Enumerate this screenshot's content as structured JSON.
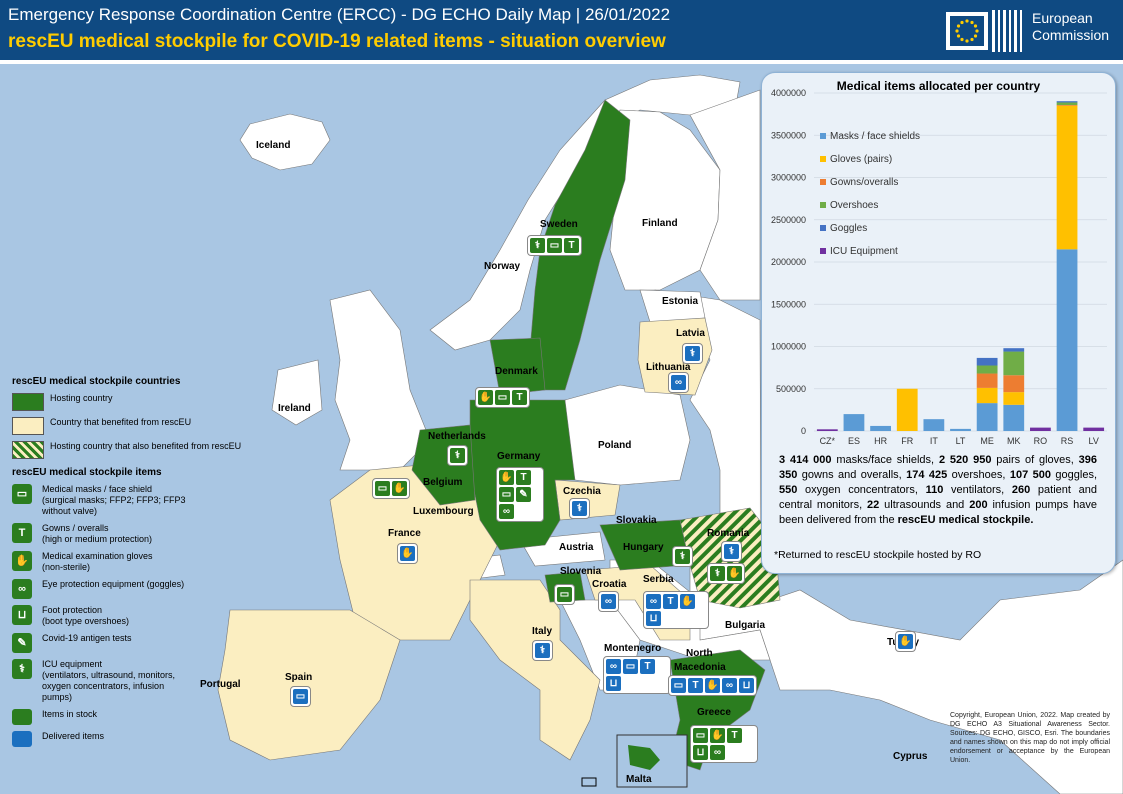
{
  "header": {
    "title": "Emergency Response Coordination Centre (ERCC) - DG ECHO Daily Map | 26/01/2022",
    "subtitle": "rescEU medical stockpile for COVID-19 related items - situation overview",
    "org_line1": "European",
    "org_line2": "Commission"
  },
  "colors": {
    "header_bg": "#0f4a82",
    "sea": "#a9c6e3",
    "hosting": "#2b7d1f",
    "benefited": "#fbeec1",
    "other_country": "#ffffff",
    "delivered_blue": "#1b6fbf",
    "series_masks": "#5b9bd5",
    "series_gloves": "#ffc000",
    "series_gowns": "#ed7d31",
    "series_overshoes": "#70ad47",
    "series_goggles": "#4472c4",
    "series_icu": "#7030a0"
  },
  "map_labels": {
    "iceland": "Iceland",
    "norway": "Norway",
    "sweden": "Sweden",
    "finland": "Finland",
    "estonia": "Estonia",
    "latvia": "Latvia",
    "lithuania": "Lithuania",
    "denmark": "Denmark",
    "ireland": "Ireland",
    "netherlands": "Netherlands",
    "belgium": "Belgium",
    "luxembourg": "Luxembourg",
    "germany": "Germany",
    "poland": "Poland",
    "czechia": "Czechia",
    "slovakia": "Slovakia",
    "austria": "Austria",
    "hungary": "Hungary",
    "romania": "Romania",
    "slovenia": "Slovenia",
    "croatia": "Croatia",
    "serbia": "Serbia",
    "france": "France",
    "italy": "Italy",
    "bulgaria": "Bulgaria",
    "montenegro": "Montenegro",
    "north_macedonia_1": "North",
    "north_macedonia_2": "Macedonia",
    "spain": "Spain",
    "portugal": "Portugal",
    "greece": "Greece",
    "turkey": "Turkey",
    "cyprus": "Cyprus",
    "malta": "Malta"
  },
  "legend": {
    "countries_title": "rescEU medical stockpile countries",
    "hosting": "Hosting country",
    "benefited": "Country that benefited from rescEU",
    "both": "Hosting country that also benefited from rescEU",
    "items_title": "rescEU medical stockpile items",
    "masks_1": "Medical masks / face shield",
    "masks_2": "(surgical masks; FFP2; FFP3; FFP3",
    "masks_3": "without valve)",
    "gowns_1": "Gowns / overalls",
    "gowns_2": "(high or medium protection)",
    "gloves_1": "Medical examination gloves",
    "gloves_2": "(non-sterile)",
    "goggles": "Eye protection equipment (goggles)",
    "foot_1": "Foot protection",
    "foot_2": "(boot type overshoes)",
    "tests": "Covid-19 antigen tests",
    "icu_1": "ICU equipment",
    "icu_2": "(ventilators, ultrasound, monitors,",
    "icu_3": "oxygen concentrators, infusion",
    "icu_4": "pumps)",
    "in_stock": "Items in stock",
    "delivered": "Delivered items"
  },
  "chart_data": {
    "type": "bar",
    "stacked": true,
    "title": "Medical items allocated per country",
    "categories": [
      "CZ*",
      "ES",
      "HR",
      "FR",
      "IT",
      "LT",
      "ME",
      "MK",
      "RO",
      "RS",
      "LV"
    ],
    "ylim": [
      0,
      4000000
    ],
    "yticks": [
      "0",
      "500000",
      "1000000",
      "1500000",
      "2000000",
      "2500000",
      "3000000",
      "3500000",
      "4000000"
    ],
    "legend_position": "top-left",
    "series": [
      {
        "name": "Masks / face shields",
        "values": [
          0,
          200000,
          60000,
          0,
          140000,
          25000,
          330000,
          310000,
          0,
          2150000,
          0
        ]
      },
      {
        "name": "Gloves (pairs)",
        "values": [
          0,
          0,
          0,
          500000,
          0,
          0,
          180000,
          150000,
          0,
          1700000,
          0
        ]
      },
      {
        "name": "Gowns/overalls",
        "values": [
          0,
          0,
          0,
          0,
          0,
          0,
          170000,
          200000,
          0,
          8000,
          0
        ]
      },
      {
        "name": "Overshoes",
        "values": [
          0,
          0,
          0,
          0,
          0,
          0,
          95000,
          280000,
          0,
          30000,
          0
        ]
      },
      {
        "name": "Goggles",
        "values": [
          0,
          0,
          0,
          0,
          0,
          0,
          90000,
          40000,
          0,
          15000,
          0
        ]
      },
      {
        "name": "ICU Equipment",
        "values": [
          20000,
          0,
          0,
          0,
          0,
          0,
          0,
          0,
          40000,
          0,
          40000
        ]
      }
    ]
  },
  "summary": {
    "p1": "3 414 000",
    "p2": " masks/face shields, ",
    "p3": "2 520 950",
    "p4": " pairs of gloves, ",
    "p5": "396 350",
    "p6": " gowns and overalls, ",
    "p7": "174 425",
    "p8": " overshoes, ",
    "p9": "107 500",
    "p10": " goggles, ",
    "p11": "550",
    "p12": " oxygen concentrators, ",
    "p13": "110",
    "p14": " ventilators, ",
    "p15": "260",
    "p16": " patient and central monitors, ",
    "p17": "22",
    "p18": " ultrasounds and ",
    "p19": "200",
    "p20": " infusion pumps have been delivered from the ",
    "p21": "rescEU medical stockpile.",
    "note": "*Returned to rescEU stockpile hosted by RO"
  },
  "copyright": "Copyright, European Union, 2022. Map created by DG ECHO A3 Situational Awareness Sector. Sources: DG ECHO, GISCO, Esri. The boundaries and names shown on this map do not imply official endorsement or acceptance by the European Union."
}
